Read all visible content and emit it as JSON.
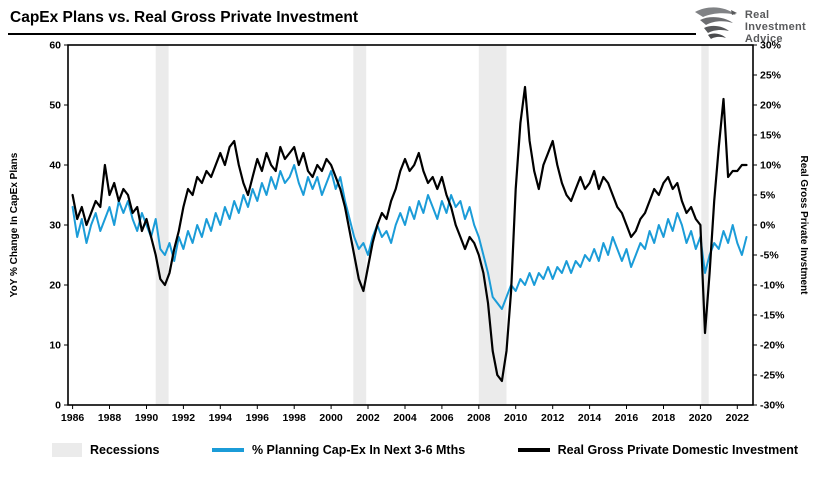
{
  "header": {
    "title": "CapEx Plans vs. Real Gross Private Investment",
    "logo": {
      "line1": "Real",
      "line2": "Investment",
      "line3": "Advice"
    }
  },
  "chart_data": {
    "type": "line",
    "title": "CapEx Plans vs. Real Gross Private Investment",
    "x_range": [
      1985.75,
      2022.85
    ],
    "x_ticks": [
      1986,
      1988,
      1990,
      1992,
      1994,
      1996,
      1998,
      2000,
      2002,
      2004,
      2006,
      2008,
      2010,
      2012,
      2014,
      2016,
      2018,
      2020,
      2022
    ],
    "x_start": 1986.0,
    "x_step": 0.25,
    "left_axis": {
      "label": "YoY % Change In CapEx Plans",
      "ylim": [
        0,
        60
      ],
      "ticks": [
        0,
        10,
        20,
        30,
        40,
        50,
        60
      ]
    },
    "right_axis": {
      "label": "Real Gross Private Invstment",
      "ylim": [
        -30,
        30
      ],
      "ticks": [
        -30,
        -25,
        -20,
        -15,
        -10,
        -5,
        0,
        5,
        10,
        15,
        20,
        25,
        30
      ],
      "tick_suffix": "%"
    },
    "grid": false,
    "recession_color": "#ebebeb",
    "recessions": [
      [
        1990.5,
        1991.2
      ],
      [
        2001.2,
        2001.9
      ],
      [
        2008.0,
        2009.5
      ],
      [
        2020.05,
        2020.45
      ]
    ],
    "series": [
      {
        "name": "% Planning Cap-Ex In Next 3-6 Mths",
        "axis": "left",
        "color": "#1b9cd8",
        "width": 2,
        "values": [
          33,
          28,
          31,
          27,
          30,
          32,
          29,
          31,
          33,
          30,
          34,
          32,
          34,
          31,
          29,
          32,
          30,
          28,
          31,
          26,
          25,
          27,
          24,
          28,
          26,
          29,
          27,
          30,
          28,
          31,
          29,
          32,
          30,
          33,
          31,
          34,
          32,
          35,
          33,
          36,
          34,
          37,
          35,
          38,
          36,
          39,
          37,
          38,
          40,
          37,
          35,
          38,
          36,
          38,
          35,
          37,
          39,
          36,
          38,
          34,
          31,
          28,
          26,
          27,
          25,
          28,
          30,
          28,
          29,
          27,
          30,
          32,
          30,
          33,
          31,
          34,
          32,
          35,
          33,
          31,
          34,
          32,
          35,
          33,
          34,
          31,
          33,
          30,
          28,
          25,
          22,
          18,
          17,
          16,
          18,
          20,
          19,
          21,
          20,
          22,
          20,
          22,
          21,
          23,
          21,
          23,
          22,
          24,
          22,
          24,
          23,
          25,
          24,
          26,
          24,
          27,
          25,
          28,
          26,
          24,
          26,
          23,
          25,
          27,
          26,
          29,
          27,
          30,
          28,
          31,
          29,
          32,
          30,
          27,
          29,
          26,
          28,
          22,
          25,
          27,
          26,
          29,
          27,
          30,
          27,
          25,
          28
        ]
      },
      {
        "name": "Real Gross Private Domestic Investment",
        "axis": "right",
        "color": "#000000",
        "width": 2.2,
        "values": [
          5,
          1,
          3,
          0,
          2,
          4,
          3,
          10,
          5,
          7,
          4,
          6,
          5,
          2,
          3,
          -1,
          1,
          -2,
          -5,
          -9,
          -10,
          -8,
          -4,
          -1,
          3,
          6,
          5,
          8,
          7,
          9,
          8,
          10,
          12,
          10,
          13,
          14,
          10,
          7,
          5,
          8,
          11,
          9,
          12,
          10,
          9,
          13,
          11,
          12,
          13,
          10,
          12,
          9,
          8,
          10,
          9,
          11,
          10,
          8,
          6,
          3,
          -1,
          -5,
          -9,
          -11,
          -7,
          -3,
          0,
          2,
          1,
          4,
          6,
          9,
          11,
          9,
          10,
          12,
          9,
          7,
          8,
          6,
          8,
          5,
          3,
          0,
          -2,
          -4,
          -2,
          -3,
          -5,
          -8,
          -13,
          -21,
          -25,
          -26,
          -21,
          -11,
          6,
          17,
          23,
          14,
          9,
          6,
          10,
          12,
          14,
          10,
          7,
          5,
          4,
          6,
          8,
          6,
          7,
          9,
          6,
          8,
          7,
          5,
          3,
          2,
          0,
          -2,
          -1,
          1,
          2,
          4,
          6,
          5,
          7,
          8,
          6,
          7,
          4,
          2,
          3,
          1,
          0,
          -18,
          -8,
          4,
          13,
          21,
          8,
          9,
          9,
          10,
          10
        ]
      }
    ],
    "legend": [
      {
        "label": "Recessions",
        "type": "band",
        "color": "#ebebeb"
      },
      {
        "label": "% Planning Cap-Ex In Next 3-6 Mths",
        "type": "line",
        "color": "#1b9cd8"
      },
      {
        "label": "Real Gross Private Domestic Investment",
        "type": "line",
        "color": "#000000"
      }
    ]
  }
}
